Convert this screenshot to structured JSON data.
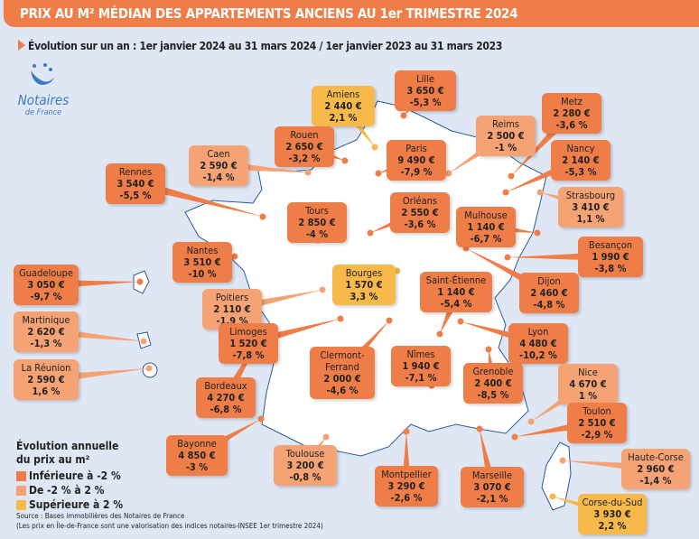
{
  "title": "PRIX AU M² MÉDIAN DES APPARTEMENTS ANCIENS AU 1er TRIMESTRE 2024",
  "subtitle": "Évolution sur un an : 1er janvier 2024 au 31 mars 2024 / 1er janvier 2023 au 31 mars 2023",
  "logo": {
    "name": "Notaires",
    "sub": "de France"
  },
  "colors": {
    "dark": "#ef7d47",
    "light": "#f5a275",
    "yellow": "#f6b94a",
    "background": "#dfe7f5"
  },
  "cities": [
    {
      "name": "Amiens",
      "price": "2 440 €",
      "evolution": "2,1 %",
      "category": "yellow"
    },
    {
      "name": "Lille",
      "price": "3 650 €",
      "evolution": "-5,3 %",
      "category": "dark"
    },
    {
      "name": "Metz",
      "price": "2 280 €",
      "evolution": "-3,6 %",
      "category": "dark"
    },
    {
      "name": "Reims",
      "price": "2 500 €",
      "evolution": "-1 %",
      "category": "light"
    },
    {
      "name": "Nancy",
      "price": "2 140 €",
      "evolution": "-5,3 %",
      "category": "dark"
    },
    {
      "name": "Strasbourg",
      "price": "3 410 €",
      "evolution": "1,1 %",
      "category": "light"
    },
    {
      "name": "Rouen",
      "price": "2 650 €",
      "evolution": "-3,2 %",
      "category": "dark"
    },
    {
      "name": "Caen",
      "price": "2 590 €",
      "evolution": "-1,4 %",
      "category": "light"
    },
    {
      "name": "Paris",
      "price": "9 490 €",
      "evolution": "-7,9 %",
      "category": "dark"
    },
    {
      "name": "Rennes",
      "price": "3 540 €",
      "evolution": "-5,5 %",
      "category": "dark"
    },
    {
      "name": "Tours",
      "price": "2 850 €",
      "evolution": "-4 %",
      "category": "dark"
    },
    {
      "name": "Orléans",
      "price": "2 550 €",
      "evolution": "-3,6 %",
      "category": "dark"
    },
    {
      "name": "Mulhouse",
      "price": "1 140 €",
      "evolution": "-6,7 %",
      "category": "dark"
    },
    {
      "name": "Besançon",
      "price": "1 990 €",
      "evolution": "-3,8 %",
      "category": "dark"
    },
    {
      "name": "Nantes",
      "price": "3 510 €",
      "evolution": "-10 %",
      "category": "dark"
    },
    {
      "name": "Bourges",
      "price": "1 570 €",
      "evolution": "3,3 %",
      "category": "yellow"
    },
    {
      "name": "Saint-Étienne",
      "price": "1 140 €",
      "evolution": "-5,4 %",
      "category": "dark"
    },
    {
      "name": "Dijon",
      "price": "2 460 €",
      "evolution": "-4,8 %",
      "category": "dark"
    },
    {
      "name": "Guadeloupe",
      "price": "3 050 €",
      "evolution": "-9,7 %",
      "category": "dark"
    },
    {
      "name": "Poitiers",
      "price": "2 110 €",
      "evolution": "-1,9 %",
      "category": "light"
    },
    {
      "name": "Martinique",
      "price": "2 620 €",
      "evolution": "-1,3 %",
      "category": "light"
    },
    {
      "name": "Lyon",
      "price": "4 480 €",
      "evolution": "-10,2 %",
      "category": "dark"
    },
    {
      "name": "Limoges",
      "price": "1 520 €",
      "evolution": "-7,8 %",
      "category": "dark"
    },
    {
      "name": "Clermont-Ferrand",
      "price": "2 000 €",
      "evolution": "-4,6 %",
      "category": "dark"
    },
    {
      "name": "Nîmes",
      "price": "1 940 €",
      "evolution": "-7,1 %",
      "category": "dark"
    },
    {
      "name": "La Réunion",
      "price": "2 590 €",
      "evolution": "1,6 %",
      "category": "light"
    },
    {
      "name": "Grenoble",
      "price": "2 400 €",
      "evolution": "-8,5 %",
      "category": "dark"
    },
    {
      "name": "Nice",
      "price": "4 670 €",
      "evolution": "1 %",
      "category": "light"
    },
    {
      "name": "Bordeaux",
      "price": "4 270 €",
      "evolution": "-6,8 %",
      "category": "dark"
    },
    {
      "name": "Toulon",
      "price": "2 510 €",
      "evolution": "-2,9 %",
      "category": "dark"
    },
    {
      "name": "Bayonne",
      "price": "4 850 €",
      "evolution": "-3 %",
      "category": "dark"
    },
    {
      "name": "Toulouse",
      "price": "3 200 €",
      "evolution": "-0,8 %",
      "category": "light"
    },
    {
      "name": "Haute-Corse",
      "price": "2 960 €",
      "evolution": "-1,4 %",
      "category": "light"
    },
    {
      "name": "Montpellier",
      "price": "3 290 €",
      "evolution": "-2,6 %",
      "category": "dark"
    },
    {
      "name": "Marseille",
      "price": "3 070 €",
      "evolution": "-2,1 %",
      "category": "dark"
    },
    {
      "name": "Corse-du-Sud",
      "price": "3 930 €",
      "evolution": "2,2 %",
      "category": "yellow"
    }
  ],
  "legend": {
    "title1": "Évolution annuelle",
    "title2": "du prix au m²",
    "items": [
      {
        "label": "Inférieure à -2 %",
        "category": "dark"
      },
      {
        "label": "De -2 % à 2 %",
        "category": "light"
      },
      {
        "label": "Supérieure à 2 %",
        "category": "yellow"
      }
    ]
  },
  "source": "Source : Bases immobilières des Notaires de France",
  "note": "(Les prix en Île-de-France sont une valorisation des indices notaires-INSEE 1er trimestre 2024)"
}
